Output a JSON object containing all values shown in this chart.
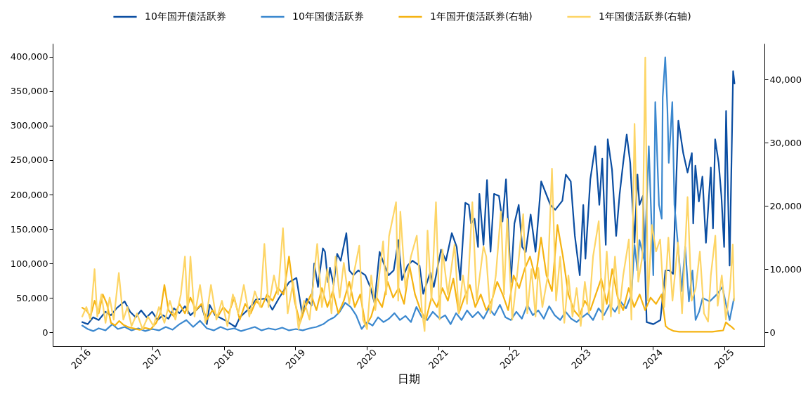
{
  "chart_data": {
    "type": "line",
    "xlabel": "日期",
    "legend": "top",
    "line_style": "solid",
    "xlim": [
      "2015-08-10",
      "2025-07-26"
    ],
    "xticks": [
      "2016",
      "2017",
      "2018",
      "2019",
      "2020",
      "2021",
      "2022",
      "2023",
      "2024",
      "2025"
    ],
    "ylim": [
      -20000,
      419000
    ],
    "yticks": [
      0,
      {
        "value": 50000,
        "label": "50,000"
      },
      {
        "value": 100000,
        "label": "100,000"
      },
      {
        "value": 150000,
        "label": "150,000"
      },
      {
        "value": 200000,
        "label": "200,000"
      },
      {
        "value": 250000,
        "label": "250,000"
      },
      {
        "value": 300000,
        "label": "300,000"
      },
      {
        "value": 350000,
        "label": "350,000"
      },
      {
        "value": 400000,
        "label": "400,000"
      }
    ],
    "y2lim": [
      -2200,
      45700
    ],
    "y2ticks": [
      0,
      {
        "value": 10000,
        "label": "10,000"
      },
      {
        "value": 20000,
        "label": "20,000"
      },
      {
        "value": 30000,
        "label": "30,000"
      },
      {
        "value": 40000,
        "label": "40,000"
      }
    ],
    "series": [
      {
        "name": "10年国开债活跃券",
        "color": "#0b4ea2",
        "x": [
          "2016-01-08",
          "2016-02-05",
          "2016-03-04",
          "2016-04-01",
          "2016-05-06",
          "2016-06-03",
          "2016-07-01",
          "2016-08-12",
          "2016-09-09",
          "2016-10-07",
          "2016-11-04",
          "2016-12-02",
          "2016-12-30",
          "2017-01-27",
          "2017-02-24",
          "2017-03-24",
          "2017-04-21",
          "2017-05-19",
          "2017-06-16",
          "2017-07-14",
          "2017-08-11",
          "2017-09-08",
          "2017-10-06",
          "2017-10-20",
          "2017-11-17",
          "2018-01-05",
          "2018-03-01",
          "2018-03-24",
          "2018-05-11",
          "2018-06-15",
          "2018-08-04",
          "2018-09-06",
          "2018-10-08",
          "2018-12-01",
          "2019-01-07",
          "2019-02-06",
          "2019-02-28",
          "2019-03-25",
          "2019-04-08",
          "2019-04-27",
          "2019-05-22",
          "2019-06-02",
          "2019-06-17",
          "2019-06-27",
          "2019-07-16",
          "2019-08-03",
          "2019-08-21",
          "2019-09-19",
          "2019-10-04",
          "2019-10-25",
          "2019-11-19",
          "2019-12-25",
          "2020-01-19",
          "2020-02-10",
          "2020-03-07",
          "2020-04-01",
          "2020-04-22",
          "2020-05-18",
          "2020-06-11",
          "2020-06-29",
          "2020-07-28",
          "2020-08-22",
          "2020-09-27",
          "2020-10-16",
          "2020-11-21",
          "2020-12-09",
          "2021-01-15",
          "2021-02-09",
          "2021-03-11",
          "2021-04-05",
          "2021-04-23",
          "2021-05-19",
          "2021-06-06",
          "2021-06-17",
          "2021-07-05",
          "2021-07-23",
          "2021-07-30",
          "2021-08-20",
          "2021-09-07",
          "2021-09-25",
          "2021-10-13",
          "2021-11-07",
          "2021-11-25",
          "2021-12-13",
          "2022-01-07",
          "2022-01-25",
          "2022-02-16",
          "2022-03-06",
          "2022-03-24",
          "2022-04-18",
          "2022-05-13",
          "2022-06-11",
          "2022-07-28",
          "2022-08-22",
          "2022-09-27",
          "2022-10-15",
          "2022-11-09",
          "2022-11-30",
          "2022-12-25",
          "2023-01-12",
          "2023-01-23",
          "2023-02-17",
          "2023-03-14",
          "2023-04-04",
          "2023-04-19",
          "2023-05-07",
          "2023-05-17",
          "2023-06-08",
          "2023-06-29",
          "2023-07-17",
          "2023-08-04",
          "2023-08-22",
          "2023-09-09",
          "2023-10-01",
          "2023-10-16",
          "2023-10-26",
          "2023-11-13",
          "2023-12-02",
          "2024-01-05",
          "2024-02-10",
          "2024-03-07",
          "2024-03-26",
          "2024-04-15",
          "2024-05-01",
          "2024-05-12",
          "2024-06-06",
          "2024-06-28",
          "2024-07-20",
          "2024-07-27",
          "2024-08-07",
          "2024-08-25",
          "2024-09-12",
          "2024-09-30",
          "2024-10-25",
          "2024-11-05",
          "2024-11-16",
          "2024-12-04",
          "2024-12-18",
          "2025-01-01",
          "2025-01-11",
          "2025-01-29",
          "2025-02-16",
          "2025-02-23"
        ],
        "values": [
          15000,
          12000,
          22000,
          18000,
          30000,
          25000,
          35000,
          45000,
          30000,
          22000,
          32000,
          22000,
          30000,
          18000,
          25000,
          20000,
          35000,
          28000,
          38000,
          25000,
          32000,
          40000,
          12000,
          40000,
          25000,
          18000,
          8000,
          22000,
          35000,
          48000,
          49000,
          33000,
          49000,
          73000,
          79000,
          25000,
          49000,
          39000,
          100000,
          66000,
          122000,
          117000,
          73000,
          94000,
          69000,
          114000,
          104000,
          144000,
          90000,
          83000,
          90000,
          83000,
          66000,
          43000,
          117000,
          97000,
          83000,
          90000,
          134000,
          76000,
          97000,
          104000,
          97000,
          56000,
          87000,
          66000,
          120000,
          104000,
          144000,
          124000,
          76000,
          188000,
          185000,
          158000,
          165000,
          124000,
          201000,
          127000,
          221000,
          117000,
          201000,
          198000,
          161000,
          222000,
          73000,
          158000,
          185000,
          124000,
          117000,
          171000,
          117000,
          219000,
          185000,
          178000,
          191000,
          229000,
          219000,
          140000,
          83000,
          185000,
          107000,
          222000,
          270000,
          185000,
          252000,
          127000,
          280000,
          236000,
          140000,
          201000,
          246000,
          287000,
          246000,
          130000,
          229000,
          185000,
          198000,
          15000,
          12000,
          18000,
          90000,
          90000,
          85000,
          219000,
          307000,
          260000,
          232000,
          260000,
          158000,
          242000,
          190000,
          226000,
          130000,
          239000,
          151000,
          280000,
          246000,
          198000,
          124000,
          321000,
          97000,
          379000,
          361000
        ]
      },
      {
        "name": "10年国债活跃券",
        "color": "#3b88cf",
        "x": [
          "2016-01-08",
          "2016-02-05",
          "2016-03-04",
          "2016-04-01",
          "2016-05-06",
          "2016-06-10",
          "2016-07-08",
          "2016-08-12",
          "2016-09-16",
          "2016-10-21",
          "2016-11-25",
          "2016-12-30",
          "2017-02-03",
          "2017-03-10",
          "2017-04-14",
          "2017-05-19",
          "2017-06-23",
          "2017-07-28",
          "2017-09-01",
          "2017-10-06",
          "2017-11-10",
          "2017-12-15",
          "2018-01-19",
          "2018-02-23",
          "2018-03-30",
          "2018-05-04",
          "2018-06-08",
          "2018-07-13",
          "2018-08-17",
          "2018-09-21",
          "2018-10-26",
          "2018-11-30",
          "2019-01-04",
          "2019-02-08",
          "2019-03-15",
          "2019-04-19",
          "2019-05-24",
          "2019-06-21",
          "2019-07-19",
          "2019-08-16",
          "2019-09-13",
          "2019-10-11",
          "2019-11-08",
          "2019-12-06",
          "2020-01-03",
          "2020-01-31",
          "2020-02-28",
          "2020-03-27",
          "2020-04-24",
          "2020-05-22",
          "2020-06-19",
          "2020-07-17",
          "2020-08-14",
          "2020-09-11",
          "2020-10-09",
          "2020-11-06",
          "2020-12-04",
          "2021-01-08",
          "2021-02-05",
          "2021-03-05",
          "2021-04-02",
          "2021-04-30",
          "2021-05-28",
          "2021-06-25",
          "2021-07-23",
          "2021-08-20",
          "2021-09-17",
          "2021-10-15",
          "2021-11-12",
          "2021-12-10",
          "2022-01-07",
          "2022-02-04",
          "2022-03-04",
          "2022-04-01",
          "2022-04-29",
          "2022-05-27",
          "2022-06-24",
          "2022-07-22",
          "2022-08-19",
          "2022-09-16",
          "2022-10-14",
          "2022-11-11",
          "2022-12-09",
          "2023-01-06",
          "2023-02-03",
          "2023-03-03",
          "2023-03-31",
          "2023-04-28",
          "2023-05-26",
          "2023-06-23",
          "2023-07-21",
          "2023-08-18",
          "2023-09-15",
          "2023-10-01",
          "2023-10-16",
          "2023-10-26",
          "2023-11-21",
          "2023-12-13",
          "2024-01-05",
          "2024-01-15",
          "2024-02-03",
          "2024-02-17",
          "2024-02-22",
          "2024-03-06",
          "2024-03-17",
          "2024-03-24",
          "2024-04-11",
          "2024-04-22",
          "2024-05-10",
          "2024-05-29",
          "2024-06-16",
          "2024-07-05",
          "2024-07-23",
          "2024-08-08",
          "2024-08-26",
          "2024-09-13",
          "2024-10-19",
          "2024-11-24",
          "2024-12-23",
          "2025-01-11",
          "2025-01-29",
          "2025-02-20"
        ],
        "values": [
          10000,
          5000,
          2000,
          6000,
          3000,
          12000,
          5000,
          8000,
          3000,
          6000,
          2000,
          5000,
          3000,
          8000,
          4000,
          12000,
          18000,
          8000,
          17000,
          6000,
          3000,
          8000,
          4000,
          6000,
          2000,
          5000,
          8000,
          3000,
          6000,
          4000,
          7000,
          3000,
          5000,
          3000,
          6000,
          8000,
          12000,
          18000,
          22000,
          30000,
          43000,
          37000,
          25000,
          5000,
          15000,
          10000,
          22000,
          15000,
          20000,
          28000,
          18000,
          24000,
          15000,
          37000,
          22000,
          18000,
          30000,
          20000,
          25000,
          12000,
          28000,
          18000,
          32000,
          22000,
          30000,
          20000,
          35000,
          25000,
          40000,
          22000,
          18000,
          30000,
          20000,
          40000,
          25000,
          32000,
          20000,
          38000,
          25000,
          18000,
          30000,
          20000,
          15000,
          22000,
          28000,
          18000,
          35000,
          25000,
          40000,
          30000,
          45000,
          35000,
          55000,
          127000,
          90000,
          134000,
          104000,
          270000,
          83000,
          334000,
          185000,
          165000,
          341000,
          399000,
          324000,
          246000,
          334000,
          185000,
          127000,
          60000,
          124000,
          45000,
          90000,
          18000,
          30000,
          50000,
          45000,
          55000,
          66000,
          40000,
          18000,
          49000
        ]
      },
      {
        "name": "1年国开债活跃券(右轴)",
        "color": "#f5b312",
        "axis": "y2",
        "x": [
          "2016-01-08",
          "2016-01-29",
          "2016-02-19",
          "2016-03-11",
          "2016-04-01",
          "2016-04-22",
          "2016-05-13",
          "2016-06-03",
          "2016-06-24",
          "2016-07-15",
          "2016-08-05",
          "2016-09-02",
          "2016-09-30",
          "2016-10-28",
          "2016-11-25",
          "2016-12-23",
          "2017-01-20",
          "2017-02-10",
          "2017-03-03",
          "2017-03-24",
          "2017-04-21",
          "2017-05-19",
          "2017-06-16",
          "2017-07-14",
          "2017-08-11",
          "2017-09-08",
          "2017-10-06",
          "2017-11-03",
          "2017-12-01",
          "2017-12-29",
          "2018-01-26",
          "2018-02-23",
          "2018-03-23",
          "2018-04-20",
          "2018-05-18",
          "2018-06-15",
          "2018-07-13",
          "2018-08-10",
          "2018-09-07",
          "2018-10-05",
          "2018-11-02",
          "2018-11-30",
          "2018-12-28",
          "2019-01-25",
          "2019-02-22",
          "2019-03-22",
          "2019-04-19",
          "2019-05-17",
          "2019-06-14",
          "2019-07-12",
          "2019-08-09",
          "2019-09-06",
          "2019-10-04",
          "2019-11-01",
          "2019-11-29",
          "2019-12-27",
          "2020-01-24",
          "2020-02-21",
          "2020-03-20",
          "2020-04-17",
          "2020-05-15",
          "2020-06-12",
          "2020-07-10",
          "2020-08-07",
          "2020-09-04",
          "2020-10-02",
          "2020-10-30",
          "2020-11-27",
          "2020-12-25",
          "2021-01-22",
          "2021-02-19",
          "2021-03-19",
          "2021-04-16",
          "2021-05-14",
          "2021-06-11",
          "2021-07-09",
          "2021-08-06",
          "2021-09-03",
          "2021-10-01",
          "2021-10-29",
          "2021-11-26",
          "2021-12-24",
          "2022-01-21",
          "2022-02-18",
          "2022-03-18",
          "2022-04-15",
          "2022-05-13",
          "2022-06-10",
          "2022-07-08",
          "2022-08-05",
          "2022-09-02",
          "2022-09-30",
          "2022-10-28",
          "2022-11-25",
          "2022-12-23",
          "2023-01-20",
          "2023-02-17",
          "2023-03-17",
          "2023-04-14",
          "2023-05-12",
          "2023-06-09",
          "2023-07-07",
          "2023-08-04",
          "2023-09-01",
          "2023-09-29",
          "2023-10-27",
          "2023-11-24",
          "2023-12-22",
          "2024-01-19",
          "2024-02-16",
          "2024-03-08",
          "2024-03-22",
          "2024-04-19",
          "2024-05-17",
          "2024-06-14",
          "2024-07-12",
          "2024-08-09",
          "2024-09-06",
          "2024-10-04",
          "2024-11-01",
          "2024-11-29",
          "2024-12-27",
          "2025-01-10",
          "2025-01-24",
          "2025-02-07",
          "2025-02-21"
        ],
        "values": [
          3900,
          3500,
          2500,
          5000,
          3000,
          6000,
          4500,
          1500,
          1100,
          1800,
          1200,
          800,
          600,
          400,
          700,
          500,
          1500,
          3000,
          7500,
          3500,
          2500,
          4500,
          3000,
          5500,
          3500,
          4500,
          2000,
          3500,
          2500,
          4000,
          3000,
          5500,
          2000,
          4500,
          3000,
          5000,
          4000,
          6000,
          5000,
          7000,
          6000,
          12000,
          5000,
          1500,
          4000,
          6000,
          3500,
          7000,
          4000,
          6500,
          3000,
          5000,
          8000,
          4000,
          6000,
          1000,
          2500,
          5500,
          4000,
          8000,
          5500,
          7000,
          4500,
          10500,
          6000,
          3500,
          2000,
          5500,
          4000,
          7000,
          5000,
          8500,
          3000,
          5500,
          7500,
          4000,
          6000,
          3500,
          5000,
          8000,
          6000,
          3500,
          9000,
          7000,
          10000,
          12000,
          8500,
          15000,
          9000,
          6500,
          17000,
          12000,
          6000,
          3500,
          2500,
          5000,
          3500,
          6000,
          8500,
          4500,
          10000,
          5500,
          3500,
          7000,
          4000,
          6000,
          3500,
          5500,
          4500,
          6000,
          1000,
          600,
          200,
          100,
          100,
          100,
          100,
          100,
          100,
          100,
          200,
          300,
          1600,
          1200,
          900,
          500
        ]
      },
      {
        "name": "1年国债活跃券(右轴)",
        "color": "#fdd566",
        "axis": "y2",
        "x": [
          "2016-01-08",
          "2016-01-29",
          "2016-02-19",
          "2016-03-11",
          "2016-03-25",
          "2016-04-15",
          "2016-05-06",
          "2016-05-27",
          "2016-06-17",
          "2016-07-13",
          "2016-08-05",
          "2016-08-26",
          "2016-09-16",
          "2016-10-14",
          "2016-11-11",
          "2016-12-09",
          "2017-01-06",
          "2017-02-03",
          "2017-03-03",
          "2017-03-31",
          "2017-04-28",
          "2017-05-26",
          "2017-06-16",
          "2017-06-30",
          "2017-07-14",
          "2017-08-04",
          "2017-09-01",
          "2017-09-29",
          "2017-10-27",
          "2017-11-24",
          "2017-12-22",
          "2018-01-19",
          "2018-02-16",
          "2018-03-16",
          "2018-04-13",
          "2018-05-11",
          "2018-06-08",
          "2018-07-06",
          "2018-07-27",
          "2018-08-17",
          "2018-09-14",
          "2018-10-05",
          "2018-10-30",
          "2018-11-23",
          "2018-12-21",
          "2019-01-18",
          "2019-02-15",
          "2019-03-15",
          "2019-04-23",
          "2019-05-17",
          "2019-06-14",
          "2019-07-05",
          "2019-07-26",
          "2019-08-16",
          "2019-09-06",
          "2019-10-04",
          "2019-10-25",
          "2019-11-24",
          "2019-12-13",
          "2020-01-03",
          "2020-01-24",
          "2020-02-14",
          "2020-03-25",
          "2020-04-10",
          "2020-04-24",
          "2020-05-30",
          "2020-06-10",
          "2020-06-21",
          "2020-07-17",
          "2020-08-14",
          "2020-09-13",
          "2020-10-09",
          "2020-10-23",
          "2020-11-07",
          "2020-11-27",
          "2020-12-20",
          "2021-01-08",
          "2021-01-22",
          "2021-02-19",
          "2021-03-25",
          "2021-04-16",
          "2021-05-07",
          "2021-05-28",
          "2021-06-24",
          "2021-07-16",
          "2021-08-20",
          "2021-09-03",
          "2021-09-24",
          "2021-10-22",
          "2021-11-17",
          "2021-12-03",
          "2021-12-19",
          "2022-01-14",
          "2022-02-11",
          "2022-03-11",
          "2022-04-01",
          "2022-04-22",
          "2022-05-13",
          "2022-05-27",
          "2022-06-17",
          "2022-07-15",
          "2022-08-05",
          "2022-08-26",
          "2022-09-16",
          "2022-10-07",
          "2022-10-28",
          "2022-11-18",
          "2022-12-09",
          "2022-12-30",
          "2023-01-20",
          "2023-02-10",
          "2023-03-03",
          "2023-04-01",
          "2023-04-21",
          "2023-05-12",
          "2023-06-02",
          "2023-06-23",
          "2023-07-14",
          "2023-08-04",
          "2023-09-02",
          "2023-09-15",
          "2023-10-01",
          "2023-10-20",
          "2023-11-10",
          "2023-11-25",
          "2023-12-08",
          "2023-12-29",
          "2024-01-19",
          "2024-02-09",
          "2024-03-01",
          "2024-03-22",
          "2024-04-12",
          "2024-05-10",
          "2024-05-31",
          "2024-06-28",
          "2024-07-19",
          "2024-08-09",
          "2024-08-30",
          "2024-09-20",
          "2024-10-11",
          "2024-10-25",
          "2024-11-17",
          "2024-11-29",
          "2024-12-20",
          "2025-01-10",
          "2025-01-31",
          "2025-02-14",
          "2025-02-21"
        ],
        "values": [
          2500,
          4000,
          2000,
          10000,
          2500,
          6000,
          1500,
          5500,
          2000,
          9400,
          2000,
          4000,
          1000,
          3000,
          500,
          2500,
          1000,
          4000,
          1500,
          5000,
          2000,
          6000,
          12000,
          3000,
          12000,
          2500,
          7500,
          1500,
          7500,
          2000,
          5000,
          1000,
          6000,
          3000,
          7500,
          2500,
          6500,
          4000,
          14000,
          4000,
          9000,
          6000,
          16500,
          3000,
          8000,
          500,
          5000,
          2000,
          14000,
          4000,
          10000,
          3000,
          12000,
          5500,
          11000,
          4500,
          9000,
          13700,
          2000,
          500,
          9000,
          3500,
          14400,
          6000,
          15200,
          20600,
          5000,
          19100,
          7000,
          12000,
          15300,
          3500,
          200,
          16100,
          5000,
          20600,
          2000,
          13100,
          6000,
          13900,
          3000,
          9000,
          4500,
          20600,
          5000,
          13600,
          12000,
          3000,
          9000,
          19100,
          6000,
          18000,
          2000,
          10000,
          18700,
          3000,
          10000,
          2500,
          10200,
          4000,
          9000,
          25900,
          5000,
          12000,
          1500,
          9000,
          2500,
          7000,
          1000,
          8000,
          3000,
          12000,
          17600,
          2000,
          12800,
          2500,
          12000,
          3000,
          9000,
          14700,
          2000,
          33000,
          8000,
          12000,
          43500,
          5000,
          17000,
          12800,
          14700,
          4000,
          15000,
          5000,
          14200,
          3000,
          21400,
          5000,
          7000,
          12800,
          3000,
          1700,
          9000,
          15300,
          4200,
          9000,
          2000,
          7000,
          13900,
          5000
        ]
      }
    ]
  }
}
